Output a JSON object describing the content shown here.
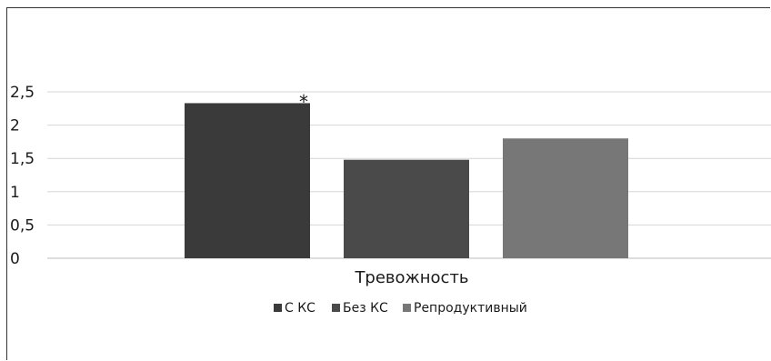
{
  "chart_data": {
    "type": "bar",
    "categories": [
      "Тревожность"
    ],
    "series": [
      {
        "name": "С КС",
        "values": [
          2.33
        ],
        "color": "#3a3a3a"
      },
      {
        "name": "Без КС",
        "values": [
          1.48
        ],
        "color": "#4a4a4a"
      },
      {
        "name": "Репродуктивный",
        "values": [
          1.8
        ],
        "color": "#777777"
      }
    ],
    "ylim": [
      0,
      2.5
    ],
    "yticks": [
      "0",
      "0,5",
      "1",
      "1,5",
      "2",
      "2,5"
    ],
    "grid": true,
    "legend": "bottom",
    "annotation": "*"
  }
}
